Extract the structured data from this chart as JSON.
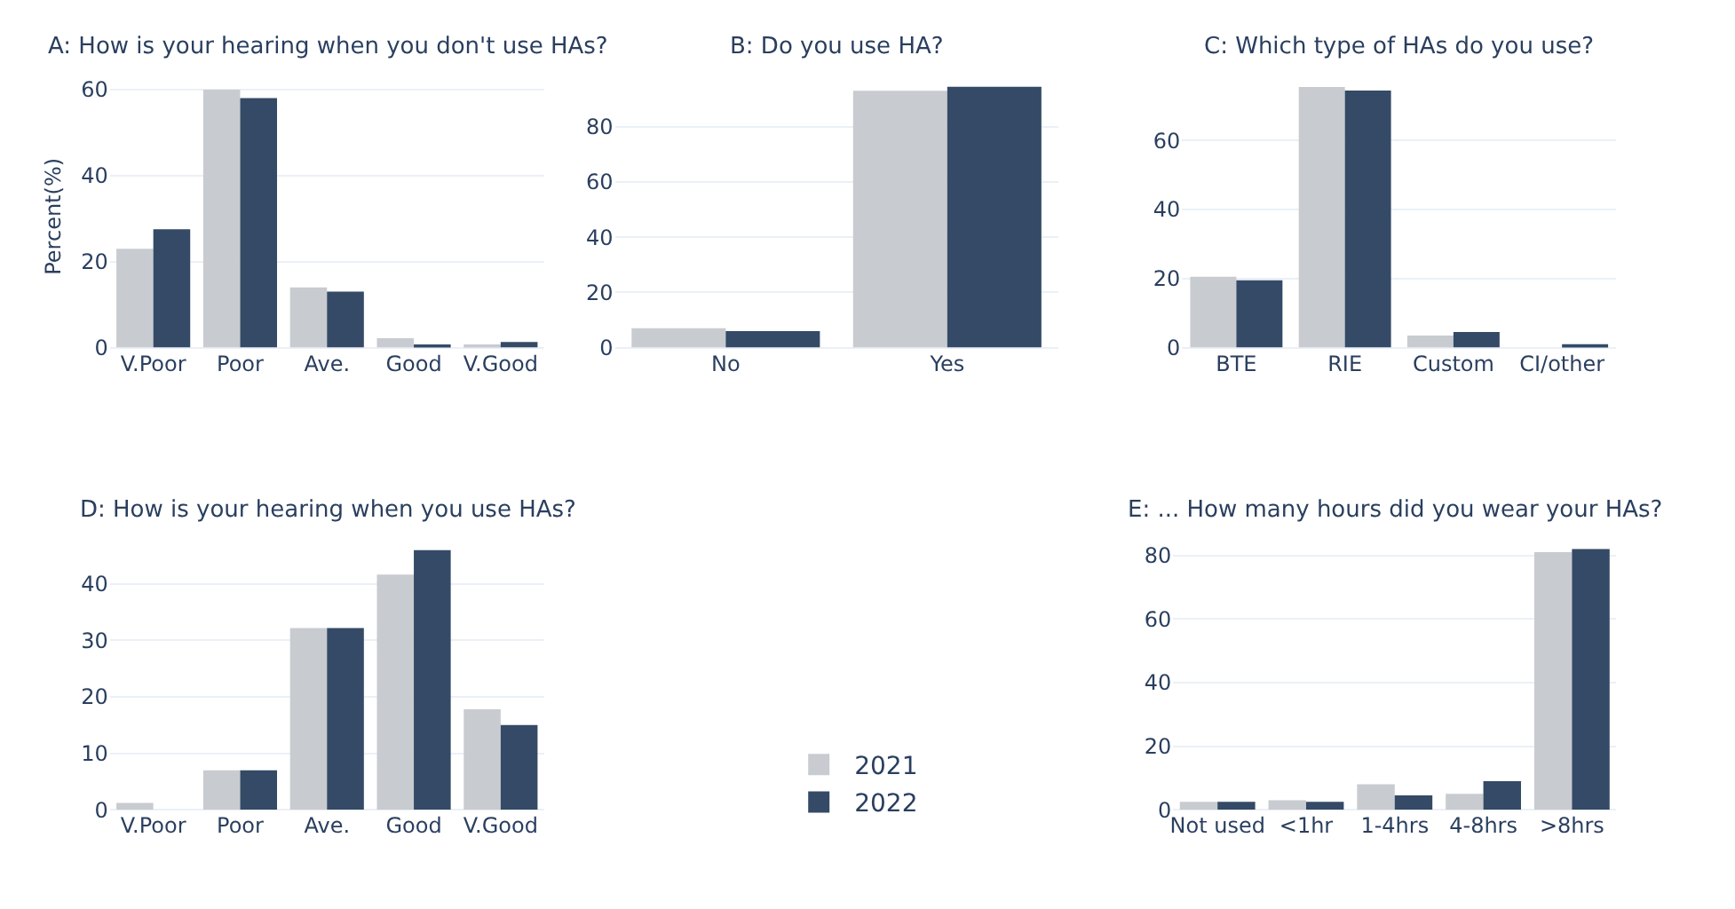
{
  "chart_data": [
    {
      "type": "bar",
      "title": "A: How is your hearing when you don't use HAs?",
      "ylabel": "Percent(%)",
      "categories": [
        "V.Poor",
        "Poor",
        "Ave.",
        "Good",
        "V.Good"
      ],
      "ylim": [
        0,
        61
      ],
      "yticks": [
        0,
        20,
        40,
        60
      ],
      "grid": "y",
      "legend": "bottom",
      "series": [
        {
          "name": "2021",
          "color": "#c8cbd0",
          "values": [
            23,
            60,
            14,
            2.2,
            0.6
          ]
        },
        {
          "name": "2022",
          "color": "#344a66",
          "values": [
            27.5,
            58,
            13,
            0.7,
            1.3
          ]
        }
      ]
    },
    {
      "type": "bar",
      "title": "B: Do you use HA?",
      "categories": [
        "No",
        "Yes"
      ],
      "ylim": [
        0,
        95
      ],
      "yticks": [
        0,
        20,
        40,
        60,
        80
      ],
      "grid": "y",
      "series": [
        {
          "name": "2021",
          "color": "#c8cbd0",
          "values": [
            7,
            93
          ]
        },
        {
          "name": "2022",
          "color": "#344a66",
          "values": [
            6,
            94.5
          ]
        }
      ]
    },
    {
      "type": "bar",
      "title": "C: Which type of HAs do you use?",
      "categories": [
        "BTE",
        "RIE",
        "Custom",
        "CI/other"
      ],
      "ylim": [
        0,
        76
      ],
      "yticks": [
        0,
        20,
        40,
        60
      ],
      "grid": "y",
      "series": [
        {
          "name": "2021",
          "color": "#c8cbd0",
          "values": [
            20.5,
            75.5,
            3.5,
            0
          ]
        },
        {
          "name": "2022",
          "color": "#344a66",
          "values": [
            19.5,
            74.5,
            4.5,
            1
          ]
        }
      ]
    },
    {
      "type": "bar",
      "title": "D: How is your hearing when you use HAs?",
      "categories": [
        "V.Poor",
        "Poor",
        "Ave.",
        "Good",
        "V.Good"
      ],
      "ylim": [
        0,
        46.5
      ],
      "yticks": [
        0,
        10,
        20,
        30,
        40
      ],
      "grid": "y",
      "series": [
        {
          "name": "2021",
          "color": "#c8cbd0",
          "values": [
            1.2,
            7,
            32.2,
            41.7,
            17.8
          ]
        },
        {
          "name": "2022",
          "color": "#344a66",
          "values": [
            0,
            7,
            32.2,
            46,
            15
          ]
        }
      ]
    },
    {
      "type": "bar",
      "title": "E: ... How many hours did you wear your HAs?",
      "categories": [
        "Not used",
        "<1hr",
        "1-4hrs",
        "4-8hrs",
        ">8hrs"
      ],
      "ylim": [
        0,
        82.5
      ],
      "yticks": [
        0,
        20,
        40,
        60,
        80
      ],
      "grid": "y",
      "series": [
        {
          "name": "2021",
          "color": "#c8cbd0",
          "values": [
            2.5,
            3,
            8,
            5,
            81
          ]
        },
        {
          "name": "2022",
          "color": "#344a66",
          "values": [
            2.5,
            2.5,
            4.5,
            9,
            82
          ]
        }
      ]
    }
  ]
}
